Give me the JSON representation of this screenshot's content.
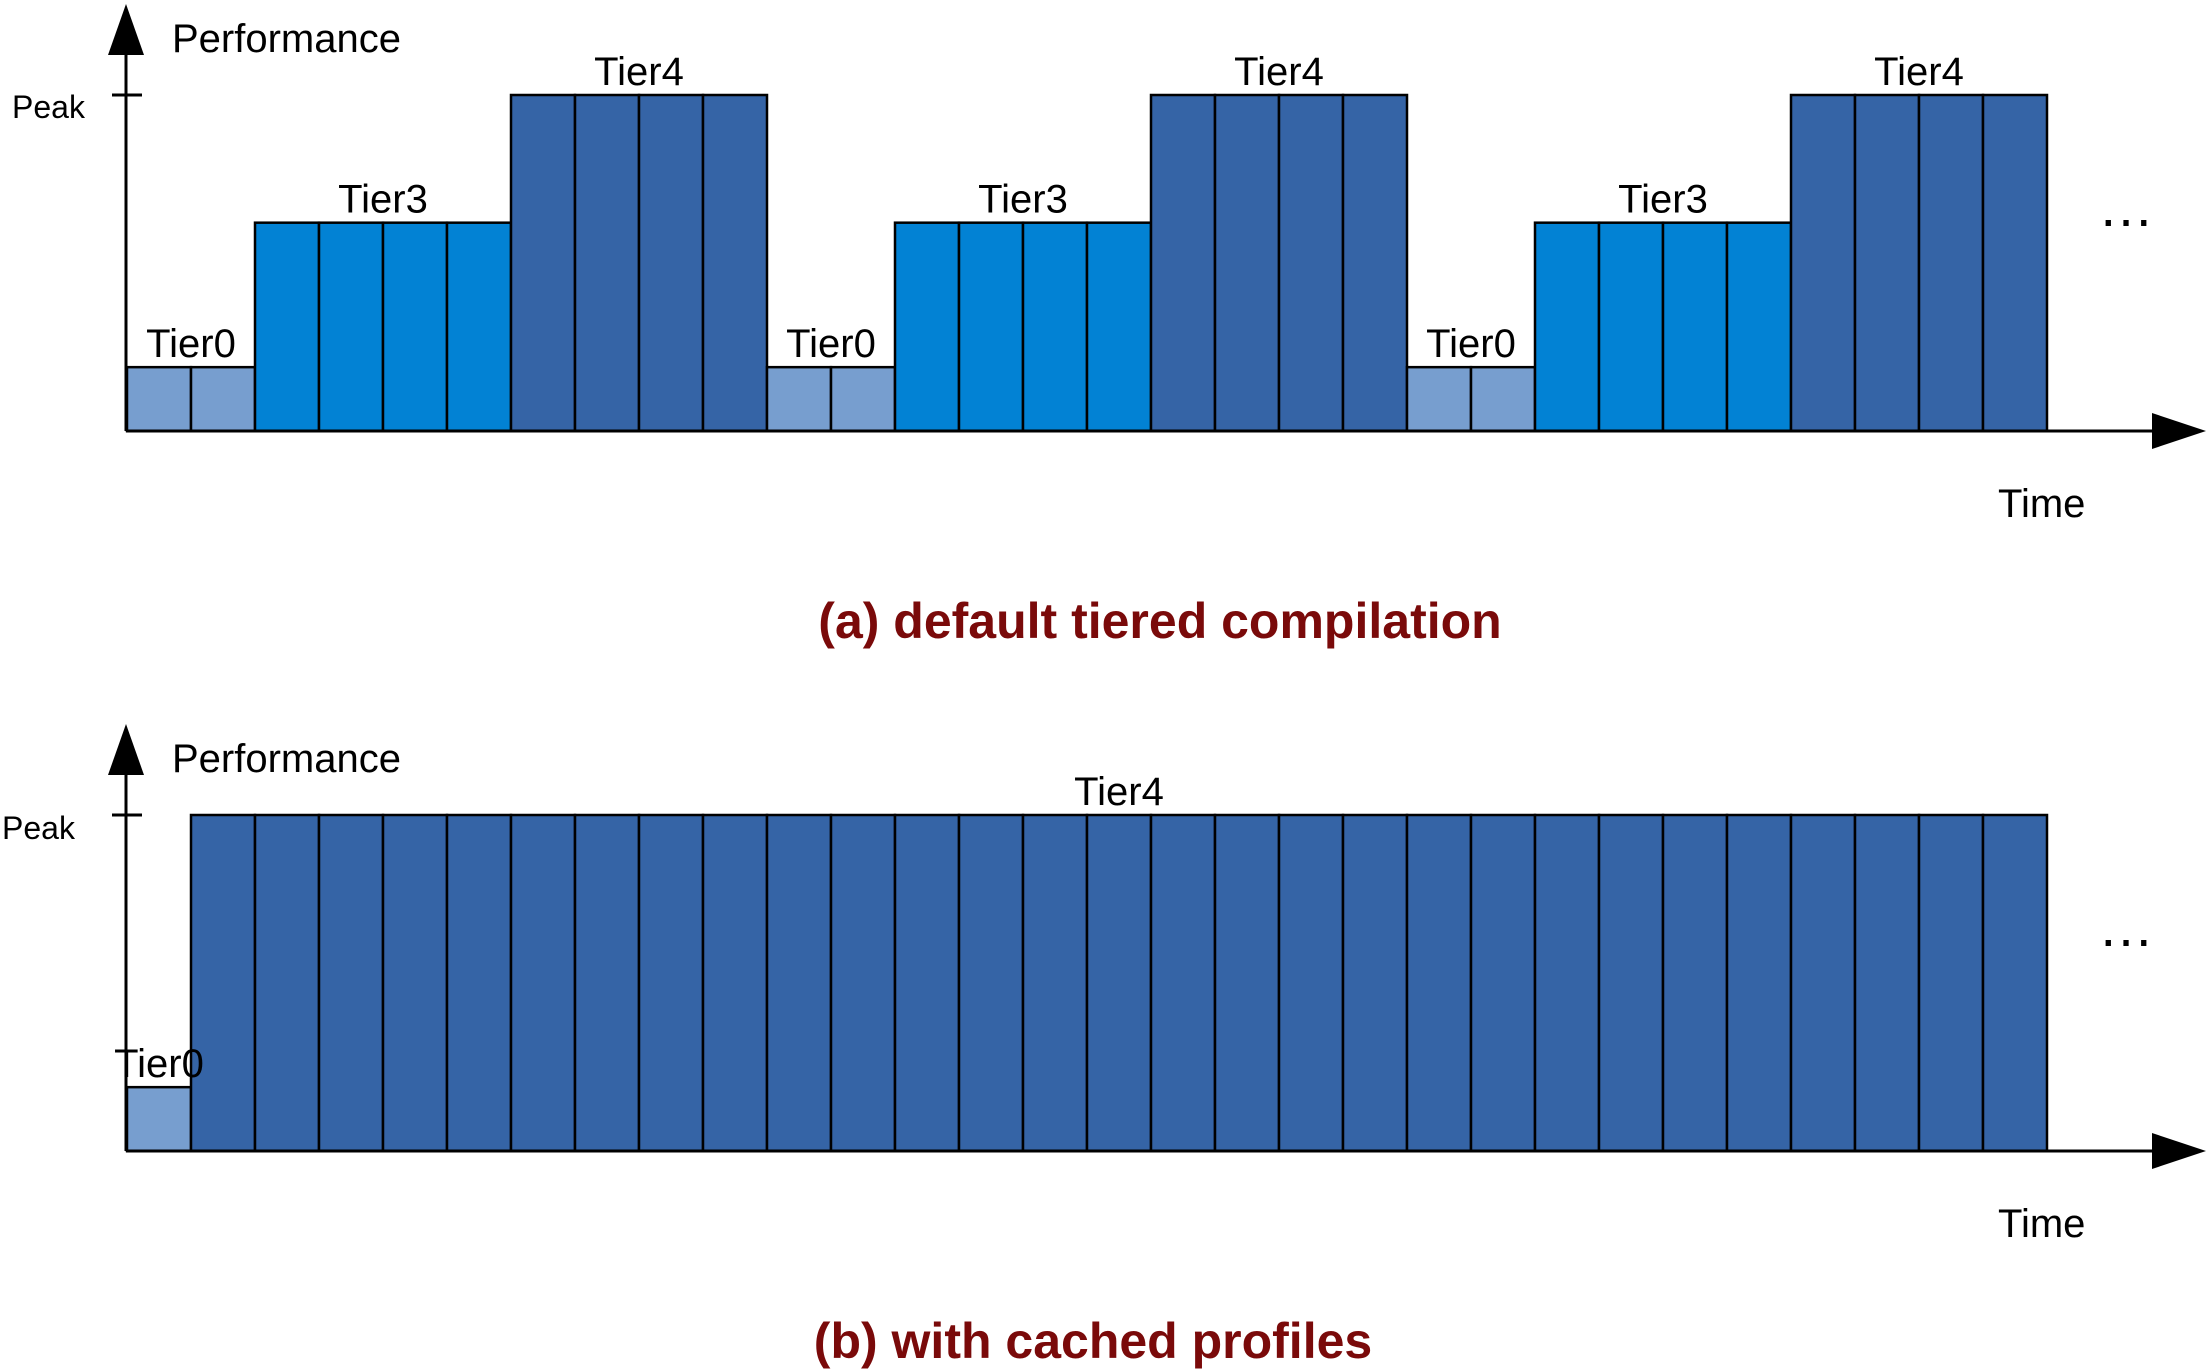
{
  "colors": {
    "tier0": "#779ecf",
    "tier3": "#0282d4",
    "tier4": "#3564a6",
    "outline": "#000000",
    "caption": "#7a0a0a"
  },
  "panels": [
    {
      "caption": "(a) default tiered compilation",
      "y_axis_label": "Performance",
      "x_axis_label": "Time",
      "peak_label": "Peak",
      "continuation": "…",
      "levels": {
        "Tier0": 0.19,
        "Tier3": 0.62,
        "Tier4": 1.0
      },
      "segments": [
        {
          "tier": "Tier0",
          "label": "Tier0",
          "blocks": 2
        },
        {
          "tier": "Tier3",
          "label": "Tier3",
          "blocks": 4
        },
        {
          "tier": "Tier4",
          "label": "Tier4",
          "blocks": 4
        },
        {
          "tier": "Tier0",
          "label": "Tier0",
          "blocks": 2
        },
        {
          "tier": "Tier3",
          "label": "Tier3",
          "blocks": 4
        },
        {
          "tier": "Tier4",
          "label": "Tier4",
          "blocks": 4
        },
        {
          "tier": "Tier0",
          "label": "Tier0",
          "blocks": 2
        },
        {
          "tier": "Tier3",
          "label": "Tier3",
          "blocks": 4
        },
        {
          "tier": "Tier4",
          "label": "Tier4",
          "blocks": 4
        }
      ]
    },
    {
      "caption": "(b) with cached profiles",
      "y_axis_label": "Performance",
      "x_axis_label": "Time",
      "peak_label": "Peak",
      "continuation": "…",
      "levels": {
        "Tier0": 0.19,
        "Tier3": 0.62,
        "Tier4": 1.0
      },
      "segments": [
        {
          "tier": "Tier0",
          "label": "Tier0",
          "blocks": 1
        },
        {
          "tier": "Tier4",
          "label": "Tier4",
          "blocks": 29
        }
      ]
    }
  ]
}
